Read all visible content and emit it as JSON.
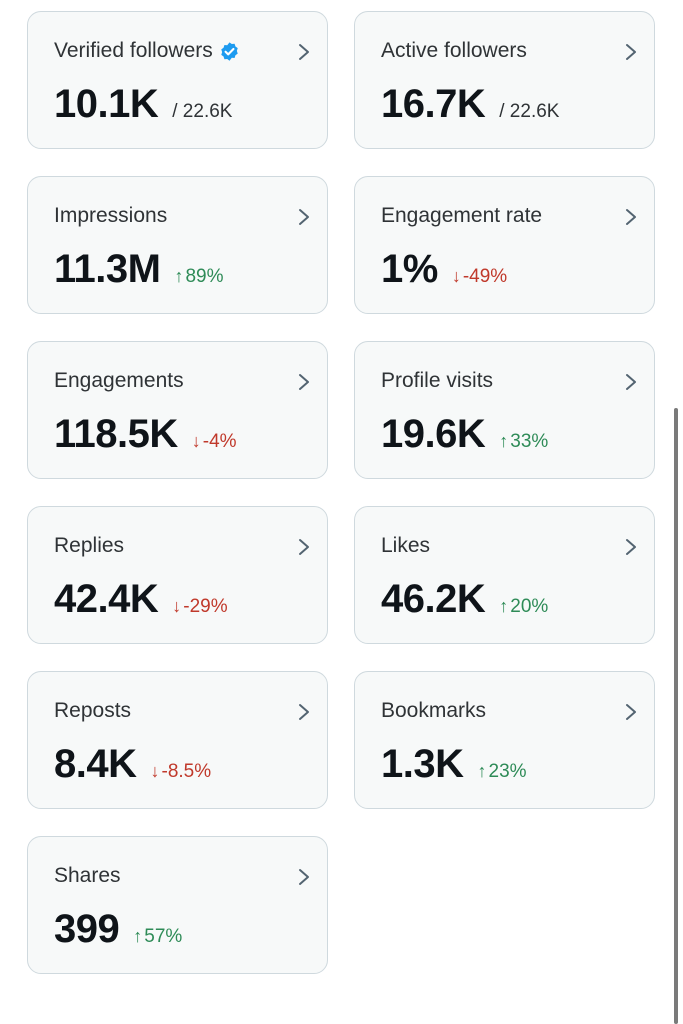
{
  "cards": [
    {
      "title": "Verified followers",
      "value": "10.1K",
      "sub": "/ 22.6K",
      "change": "",
      "direction": "",
      "verified": true
    },
    {
      "title": "Active followers",
      "value": "16.7K",
      "sub": "/ 22.6K",
      "change": "",
      "direction": ""
    },
    {
      "title": "Impressions",
      "value": "11.3M",
      "sub": "",
      "change": "89%",
      "direction": "up"
    },
    {
      "title": "Engagement rate",
      "value": "1%",
      "sub": "",
      "change": "-49%",
      "direction": "down"
    },
    {
      "title": "Engagements",
      "value": "118.5K",
      "sub": "",
      "change": "-4%",
      "direction": "down"
    },
    {
      "title": "Profile visits",
      "value": "19.6K",
      "sub": "",
      "change": "33%",
      "direction": "up"
    },
    {
      "title": "Replies",
      "value": "42.4K",
      "sub": "",
      "change": "-29%",
      "direction": "down"
    },
    {
      "title": "Likes",
      "value": "46.2K",
      "sub": "",
      "change": "20%",
      "direction": "up"
    },
    {
      "title": "Reposts",
      "value": "8.4K",
      "sub": "",
      "change": "-8.5%",
      "direction": "down"
    },
    {
      "title": "Bookmarks",
      "value": "1.3K",
      "sub": "",
      "change": "23%",
      "direction": "up"
    },
    {
      "title": "Shares",
      "value": "399",
      "sub": "",
      "change": "57%",
      "direction": "up"
    }
  ],
  "icons": {
    "chevron": "chevron-right-icon",
    "verified": "verified-badge-icon",
    "up": "arrow-up-icon",
    "down": "arrow-down-icon"
  },
  "colors": {
    "up": "#2e8b57",
    "down": "#c0392b",
    "verified": "#1d9bf0",
    "card_bg": "#f7f9f9",
    "card_border": "#cfd9de"
  }
}
